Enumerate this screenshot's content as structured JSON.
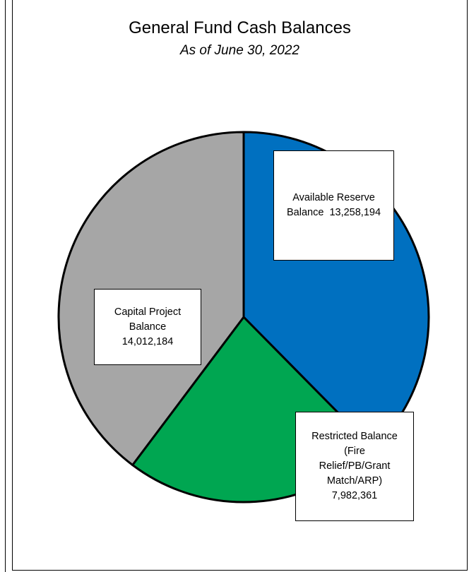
{
  "chart_data": {
    "type": "pie",
    "title": "General Fund Cash Balances",
    "subtitle": "As of June 30, 2022",
    "slices": [
      {
        "label": "Available Reserve Balance",
        "label_lines": [
          "Available Reserve",
          "Balance  13,258,194"
        ],
        "value": 13258194,
        "value_text": "13,258,194",
        "color": "#0070C0"
      },
      {
        "label": "Restricted Balance (Fire Relief/PB/Grant Match/ARP)",
        "label_lines": [
          "Restricted Balance",
          "(Fire",
          "Relief/PB/Grant",
          "Match/ARP)",
          "7,982,361"
        ],
        "value": 7982361,
        "value_text": "7,982,361",
        "color": "#00A651"
      },
      {
        "label": "Capital Project Balance",
        "label_lines": [
          "Capital Project",
          "Balance",
          "14,012,184"
        ],
        "value": 14012184,
        "value_text": "14,012,184",
        "color": "#A6A6A6"
      }
    ],
    "legend": "none",
    "data_labels": "boxed"
  }
}
